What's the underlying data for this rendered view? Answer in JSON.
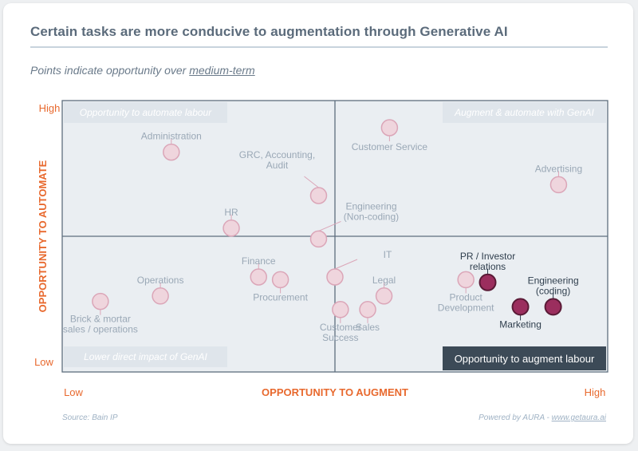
{
  "title": "Certain tasks are more conducive to augmentation through Generative AI",
  "subtitle_prefix": "Points indicate opportunity over ",
  "subtitle_emphasis": "medium-term",
  "footer": {
    "source": "Source: Bain IP",
    "powered_prefix": "Powered by AURA - ",
    "powered_link": "www.getaura.ai"
  },
  "colors": {
    "accent": "#e8692e",
    "plot_bg": "#eaeef2",
    "grid": "#5e6e7e",
    "point_light_fill": "#efd5dd",
    "point_light_stroke": "#dba6b8",
    "point_dark_fill": "#9b2e5e",
    "point_dark_stroke": "#5a1a36",
    "label_light": "#9aa8b6",
    "label_dark": "#2f3e4d",
    "highlight_box": "#3c4a57"
  },
  "chart_data": {
    "type": "scatter",
    "title": "Certain tasks are more conducive to augmentation through Generative AI",
    "xlabel": "OPPORTUNITY TO AUGMENT",
    "ylabel": "OPPORTUNITY TO AUTOMATE",
    "x_tick_labels": [
      "Low",
      "High"
    ],
    "y_tick_labels": [
      "Low",
      "High"
    ],
    "xlim": [
      0,
      100
    ],
    "ylim": [
      0,
      100
    ],
    "quadrants": [
      {
        "position": "top-left",
        "label": "Opportunity to automate labour",
        "highlighted": false
      },
      {
        "position": "top-right",
        "label": "Augment & automate with GenAI",
        "highlighted": false
      },
      {
        "position": "bottom-left",
        "label": "Lower direct impact of GenAI",
        "highlighted": false
      },
      {
        "position": "bottom-right",
        "label": "Opportunity to augment labour",
        "highlighted": true
      }
    ],
    "points": [
      {
        "name": "Administration",
        "x": 20,
        "y": 81,
        "highlight": false,
        "label_lines": [
          "Administration"
        ],
        "label_pos": "above"
      },
      {
        "name": "Customer Service",
        "x": 60,
        "y": 90,
        "highlight": false,
        "label_lines": [
          "Customer Service"
        ],
        "label_pos": "below-right"
      },
      {
        "name": "GRC, Accounting, Audit",
        "x": 47,
        "y": 65,
        "highlight": false,
        "label_lines": [
          "GRC, Accounting,",
          "Audit"
        ],
        "label_pos": "above-left"
      },
      {
        "name": "Advertising",
        "x": 91,
        "y": 69,
        "highlight": false,
        "label_lines": [
          "Advertising"
        ],
        "label_pos": "above"
      },
      {
        "name": "HR",
        "x": 31,
        "y": 53,
        "highlight": false,
        "label_lines": [
          "HR"
        ],
        "label_pos": "above"
      },
      {
        "name": "Engineering (Non-coding)",
        "x": 47,
        "y": 49,
        "highlight": false,
        "label_lines": [
          "Engineering",
          "(Non-coding)"
        ],
        "label_pos": "above-right"
      },
      {
        "name": "Finance",
        "x": 36,
        "y": 35,
        "highlight": false,
        "label_lines": [
          "Finance"
        ],
        "label_pos": "above"
      },
      {
        "name": "Procurement",
        "x": 40,
        "y": 34,
        "highlight": false,
        "label_lines": [
          "Procurement"
        ],
        "label_pos": "below"
      },
      {
        "name": "IT",
        "x": 50,
        "y": 35,
        "highlight": false,
        "label_lines": [
          "IT"
        ],
        "label_pos": "above-right"
      },
      {
        "name": "Operations",
        "x": 18,
        "y": 28,
        "highlight": false,
        "label_lines": [
          "Operations"
        ],
        "label_pos": "above"
      },
      {
        "name": "Legal",
        "x": 59,
        "y": 28,
        "highlight": false,
        "label_lines": [
          "Legal"
        ],
        "label_pos": "above"
      },
      {
        "name": "Brick & mortar sales / operations",
        "x": 7,
        "y": 26,
        "highlight": false,
        "label_lines": [
          "Brick & mortar",
          "sales / operations"
        ],
        "label_pos": "below"
      },
      {
        "name": "Sales",
        "x": 56,
        "y": 23,
        "highlight": false,
        "label_lines": [
          "Sales"
        ],
        "label_pos": "below"
      },
      {
        "name": "Customer Success",
        "x": 51,
        "y": 23,
        "highlight": false,
        "label_lines": [
          "Customer",
          "Success"
        ],
        "label_pos": "below"
      },
      {
        "name": "Product Development",
        "x": 74,
        "y": 34,
        "highlight": false,
        "label_lines": [
          "Product",
          "Development"
        ],
        "label_pos": "below"
      },
      {
        "name": "PR / Investor relations",
        "x": 78,
        "y": 33,
        "highlight": true,
        "label_lines": [
          "PR / Investor",
          "relations"
        ],
        "label_pos": "above"
      },
      {
        "name": "Marketing",
        "x": 84,
        "y": 24,
        "highlight": true,
        "label_lines": [
          "Marketing"
        ],
        "label_pos": "below"
      },
      {
        "name": "Engineering (coding)",
        "x": 90,
        "y": 24,
        "highlight": true,
        "label_lines": [
          "Engineering",
          "(coding)"
        ],
        "label_pos": "above"
      }
    ]
  }
}
